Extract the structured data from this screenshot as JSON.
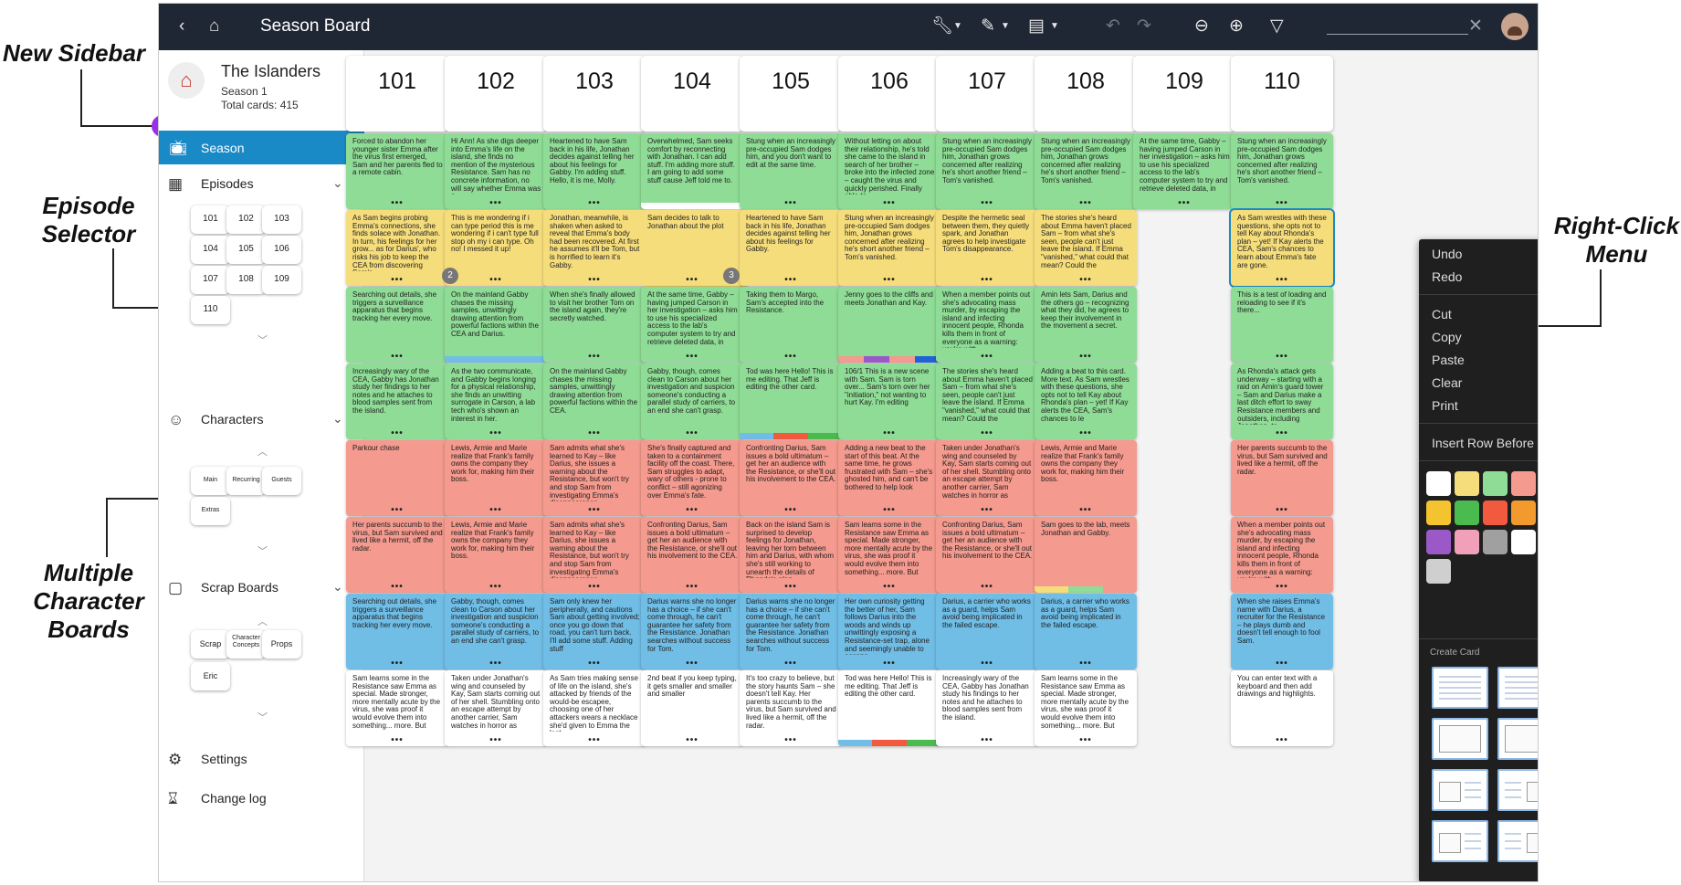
{
  "annotations": [
    "New Sidebar",
    "Episode Selector",
    "Multiple Character Boards",
    "Right-Click Menu"
  ],
  "topbar": {
    "title": "Season Board",
    "search_value": "",
    "icons": [
      "back-icon",
      "home-icon",
      "wrench-icon",
      "pencil-icon",
      "table-icon",
      "undo-icon",
      "redo-icon",
      "zoom-out-icon",
      "zoom-in-icon",
      "filter-icon",
      "close-icon",
      "avatar"
    ]
  },
  "sidebar": {
    "show_name": "The Islanders",
    "season": "Season 1",
    "total_cards": "Total cards: 415",
    "season_item": "Season",
    "episodes_label": "Episodes",
    "episodes": [
      "101",
      "102",
      "103",
      "104",
      "105",
      "106",
      "107",
      "108",
      "109",
      "110"
    ],
    "characters_label": "Characters",
    "characters": [
      "Main",
      "Recurring",
      "Guests",
      "Extras"
    ],
    "scrap_label": "Scrap Boards",
    "scrap_boards": [
      "Scrap",
      "Character Concepts",
      "Props",
      "Eric"
    ],
    "settings_label": "Settings",
    "changelog_label": "Change log"
  },
  "colors": {
    "green": "#8fdc96",
    "yellow": "#f6dd7c",
    "red": "#f49a8e",
    "blue": "#70bde6",
    "white": "#ffffff",
    "accent": "#1a8ac6"
  },
  "board": {
    "headers": [
      "101",
      "102",
      "103",
      "104",
      "105",
      "106",
      "107",
      "108",
      "109",
      "110"
    ],
    "rows": [
      {
        "color": "green",
        "cells": [
          "Forced to abandon her younger sister Emma after the virus first emerged, Sam and her parents fled to a remote cabin.",
          "Hi Ann! As she digs deeper into Emma's life on the island, she finds no mention of the mysterious Resistance. Sam has no concrete information, no will say whether Emma was a",
          "Heartened to have Sam back in his life, Jonathan decides against telling her about his feelings for Gabby. I'm adding stuff. Hello, it is me, Molly.",
          "Overwhelmed, Sam seeks comfort by reconnecting with Jonathan. I can add stuff. I'm adding more stuff. I am going to add some stuff cause Jeff told me to.",
          "Stung when an increasingly pre-occupied Sam dodges him, and you don't want to edit at the same time.",
          "Without letting on about their relationship, he's told she came to the island in search of her brother – broke into the infected zone – caught the virus and quickly perished. Finally able to",
          "Stung when an increasingly pre-occupied Sam dodges him, Jonathan grows concerned after realizing he's short another friend – Tom's vanished.",
          "Stung when an increasingly pre-occupied Sam dodges him, Jonathan grows concerned after realizing he's short another friend – Tom's vanished.",
          "At the same time, Gabby – having jumped Carson in her investigation – asks him to use his specialized access to the lab's computer system to try and retrieve deleted data, in",
          "Stung when an increasingly pre-occupied Sam dodges him, Jonathan grows concerned after realizing he's short another friend – Tom's vanished."
        ]
      },
      {
        "color": "yellow",
        "cells": [
          "As Sam begins probing Emma's connections, she finds solace with Jonathan. In turn, his feelings for her grow... as for Darius', who risks his job to keep the CEA from discovering Sam's",
          "This is me wondering if i can type period this is me wondering if i can't type full stop oh my i can type. Oh no! I messed it up!",
          "Jonathan, meanwhile, is shaken when asked to reveal that Emma's body had been recovered. At first he assumes it'll be Tom, but is horrified to learn it's Gabby.",
          "Sam decides to talk to Jonathan about the plot",
          "Heartened to have Sam back in his life, Jonathan decides against telling her about his feelings for Gabby.",
          "Stung when an increasingly pre-occupied Sam dodges him, Jonathan grows concerned after realizing he's short another friend – Tom's vanished.",
          "Despite the hermetic seal between them, they quietly spark, and Jonathan agrees to help investigate Tom's disappearance.",
          "The stories she's heard about Emma haven't placed Sam – from what she's seen, people can't just leave the island. If Emma \"vanished,\" what could that mean? Could the",
          "",
          "As Sam wrestles with these questions, she opts not to tell Kay about Rhonda's plan – yet! If Kay alerts the CEA, Sam's chances to learn about Emma's fate are gone."
        ]
      },
      {
        "color": "green",
        "cells": [
          "Searching out details, she triggers a surveillance apparatus that begins tracking her every move.",
          "On the mainland Gabby chases the missing samples, unwittingly drawing attention from powerful factions within the CEA and Darius.",
          "When she's finally allowed to visit her brother Tom on the island again, they're secretly watched.",
          "At the same time, Gabby – having jumped Carson in her investigation – asks him to use his specialized access to the lab's computer system to try and retrieve deleted data, in",
          "Taking them to Margo, Sam's accepted into the Resistance.",
          "Jenny goes to the cliffs and meets Jonathan and Kay.",
          "When a member points out she's advocating mass murder, by escaping the island and infecting innocent people, Rhonda kills them in front of everyone as a warning: you're with",
          "Amin lets Sam, Darius and the others go – recognizing what they did, he agrees to keep their involvement in the movement a secret.",
          "",
          "This is a test of loading and reloading to see if it's there..."
        ]
      },
      {
        "color": "green",
        "cells": [
          "Increasingly wary of the CEA, Gabby has Jonathan study her findings to her notes and he attaches to blood samples sent from the island.",
          "As the two communicate, and Gabby begins longing for a physical relationship, she finds an unwitting surrogate in Carson, a lab tech who's shown an interest in her.",
          "On the mainland Gabby chases the missing samples, unwittingly drawing attention from powerful factions within the CEA.",
          "Gabby, though, comes clean to Carson about her investigation and suspicion someone's conducting a parallel study of carriers, to an end she can't grasp.",
          "Tod was here Hello! This is me editing. That Jeff is editing the other card.",
          "106/1 This is a new scene with Sam. Sam is torn over... Sam's torn over her \"initiation,\" not wanting to hurt Kay. I'm editing",
          "The stories she's heard about Emma haven't placed Sam – from what she's seen, people can't just leave the island. If Emma \"vanished,\" what could that mean? Could the",
          "Adding a beat to this card. More text. As Sam wrestles with these questions, she opts not to tell Kay about Rhonda's plan – yet! If Kay alerts the CEA, Sam's chances to le",
          "",
          "As Rhonda's attack gets underway – starting with a raid on Amin's guard tower – Sam and Darius make a last ditch effort to sway Resistance members and outsiders, including Jonathan, to"
        ]
      },
      {
        "color": "red",
        "cells": [
          "Parkour chase",
          "Lewis, Armie and Marie realize that Frank's family owns the company they work for, making him their boss.",
          "Sam admits what she's learned to Kay – like Darius, she issues a warning about the Resistance, but won't try and stop Sam from investigating Emma's disappearance.",
          "She's finally captured and taken to a containment facility off the coast. There, Sam struggles to adapt, wary of others - prone to conflict – still agonizing over Emma's fate.",
          "Confronting Darius, Sam issues a bold ultimatum – get her an audience with the Resistance, or she'll out his involvement to the CEA.",
          "Adding a new beat to the start of this beat. At the same time, he grows frustrated with Sam – she's ghosted him, and can't be bothered to help look",
          "Taken under Jonathan's wing and counseled by Kay, Sam starts coming out of her shell. Stumbling onto an escape attempt by another carrier, Sam watches in horror as",
          "Lewis, Armie and Marie realize that Frank's family owns the company they work for, making him their boss.",
          "",
          "Her parents succumb to the virus, but Sam survived and lived like a hermit, off the radar."
        ]
      },
      {
        "color": "red",
        "cells": [
          "Her parents succumb to the virus, but Sam survived and lived like a hermit, off the radar.",
          "Lewis, Armie and Marie realize that Frank's family owns the company they work for, making him their boss.",
          "Sam admits what she's learned to Kay – like Darius, she issues a warning about the Resistance, but won't try and stop Sam from investigating Emma's disappearance.",
          "Confronting Darius, Sam issues a bold ultimatum – get her an audience with the Resistance, or she'll out his involvement to the CEA.",
          "Back on the island Sam is surprised to develop feelings for Jonathan, leaving her torn between him and Darius, with whom she's still working to unearth the details of Rhonda's plan.",
          "Sam learns some in the Resistance saw Emma as special. Made stronger, more mentally acute by the virus, she was proof it would evolve them into something... more. But",
          "Confronting Darius, Sam issues a bold ultimatum – get her an audience with the Resistance, or she'll out his involvement to the CEA.",
          "Sam goes to the lab, meets Jonathan and Gabby.",
          "",
          "When a member points out she's advocating mass murder, by escaping the island and infecting innocent people, Rhonda kills them in front of everyone as a warning: you're with"
        ]
      },
      {
        "color": "blue",
        "cells": [
          "Searching out details, she triggers a surveillance apparatus that begins tracking her every move.",
          "Gabby, though, comes clean to Carson about her investigation and suspicion someone's conducting a parallel study of carriers, to an end she can't grasp.",
          "Sam only knew her peripherally, and cautions Sam about getting involved; once you go down that road, you can't turn back. I'll add some stuff. Adding stuff",
          "Darius warns she no longer has a choice – if she can't come through, he can't guarantee her safety from the Resistance. Jonathan searches without success for Tom.",
          "Darius warns she no longer has a choice – if she can't come through, he can't guarantee her safety from the Resistance. Jonathan searches without success for Tom.",
          "Her own curiosity getting the better of her, Sam follows Darius into the woods and winds up unwittingly exposing a Resistance-set trap, alone and seemingly unable to escape.",
          "Darius, a carrier who works as a guard, helps Sam avoid being implicated in the failed escape.",
          "Darius, a carrier who works as a guard, helps Sam avoid being implicated in the failed escape.",
          "",
          "When she raises Emma's name with Darius, a recruiter for the Resistance – he plays dumb and doesn't tell enough to fool Sam."
        ]
      },
      {
        "color": "white",
        "cells": [
          "Sam learns some in the Resistance saw Emma as special. Made stronger, more mentally acute by the virus, she was proof it would evolve them into something... more. But",
          "Taken under Jonathan's wing and counseled by Kay, Sam starts coming out of her shell. Stumbling onto an escape attempt by another carrier, Sam watches in horror as",
          "As Sam tries making sense of life on the island, she's attacked by friends of the would-be escapee, choosing one of her attackers wears a necklace she'd given to Emma the last",
          "2nd beat if you keep typing, it gets smaller and smaller and smaller",
          "It's too crazy to believe, but the story haunts Sam – she doesn't tell Kay. Her parents succumb to the virus, but Sam survived and lived like a hermit, off the radar.",
          "Tod was here Hello! This is me editing. That Jeff is editing the other card.",
          "Increasingly wary of the CEA, Gabby has Jonathan study his findings to her notes and he attaches to blood samples sent from the island.",
          "Sam learns some in the Resistance saw Emma as special. Made stronger, more mentally acute by the virus, she was proof it would evolve them into something... more. But",
          "",
          "You can enter text with a keyboard and then add drawings and highlights."
        ]
      }
    ],
    "badges": [
      "2",
      "3"
    ]
  },
  "context_menu": {
    "items": [
      "Undo",
      "Redo",
      "Cut",
      "Copy",
      "Paste",
      "Clear",
      "Print",
      "Insert Row Before"
    ],
    "create_card_label": "Create Card",
    "swatches": [
      "#ffffff",
      "#f6dd7c",
      "#8fdc96",
      "#f49a8e",
      "#70bde6",
      "#f4c430",
      "#4cbb4f",
      "#f25a3f",
      "#f29a2e",
      "#1e63d6",
      "#9b59c8",
      "#f0a0b8",
      "#a0a0a0",
      "#ffffff",
      "#1e88d8",
      "#cfcfcf"
    ]
  }
}
